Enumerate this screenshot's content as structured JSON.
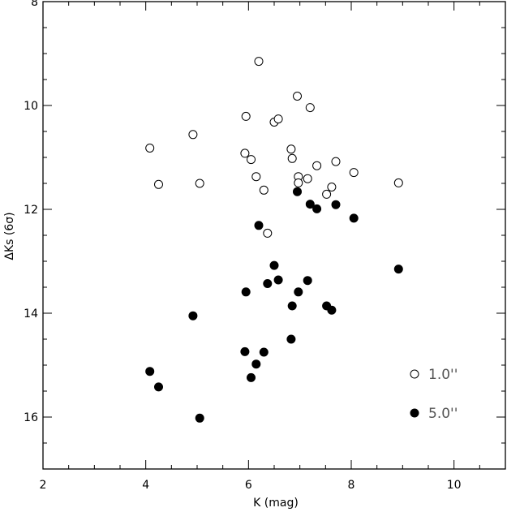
{
  "chart_data": {
    "type": "scatter",
    "title": "",
    "xlabel": "K (mag)",
    "ylabel": "ΔKs (6σ)",
    "xlim": [
      2,
      11
    ],
    "ylim": [
      17,
      8
    ],
    "y_inverted": true,
    "x_ticks": [
      "2",
      "4",
      "6",
      "8",
      "10"
    ],
    "y_ticks": [
      "8",
      "10",
      "12",
      "14",
      "16"
    ],
    "legend_position": "bottom-right",
    "series": [
      {
        "name": "1.0''",
        "marker": "open-circle",
        "points": [
          [
            4.08,
            10.82
          ],
          [
            4.25,
            11.52
          ],
          [
            4.92,
            10.56
          ],
          [
            5.05,
            11.5
          ],
          [
            5.93,
            10.92
          ],
          [
            5.95,
            10.21
          ],
          [
            6.05,
            11.04
          ],
          [
            6.15,
            11.37
          ],
          [
            6.2,
            9.15
          ],
          [
            6.3,
            11.63
          ],
          [
            6.37,
            12.46
          ],
          [
            6.5,
            10.32
          ],
          [
            6.58,
            10.26
          ],
          [
            6.83,
            10.84
          ],
          [
            6.85,
            11.02
          ],
          [
            6.95,
            9.82
          ],
          [
            6.97,
            11.37
          ],
          [
            6.97,
            11.49
          ],
          [
            7.15,
            11.41
          ],
          [
            7.2,
            10.04
          ],
          [
            7.33,
            11.16
          ],
          [
            7.52,
            11.71
          ],
          [
            7.62,
            11.57
          ],
          [
            7.7,
            11.08
          ],
          [
            8.05,
            11.29
          ],
          [
            8.92,
            11.49
          ]
        ]
      },
      {
        "name": "5.0''",
        "marker": "filled-circle",
        "points": [
          [
            4.08,
            15.12
          ],
          [
            4.25,
            15.42
          ],
          [
            4.92,
            14.05
          ],
          [
            5.05,
            16.02
          ],
          [
            5.93,
            14.74
          ],
          [
            5.95,
            13.59
          ],
          [
            6.05,
            15.24
          ],
          [
            6.15,
            14.98
          ],
          [
            6.2,
            12.31
          ],
          [
            6.3,
            14.75
          ],
          [
            6.37,
            13.43
          ],
          [
            6.5,
            13.08
          ],
          [
            6.58,
            13.36
          ],
          [
            6.83,
            14.5
          ],
          [
            6.85,
            13.86
          ],
          [
            6.95,
            11.66
          ],
          [
            6.97,
            13.59
          ],
          [
            7.15,
            13.37
          ],
          [
            7.2,
            11.9
          ],
          [
            7.33,
            11.99
          ],
          [
            7.52,
            13.86
          ],
          [
            7.62,
            13.94
          ],
          [
            7.7,
            11.91
          ],
          [
            8.05,
            12.17
          ],
          [
            8.92,
            13.15
          ]
        ]
      }
    ]
  }
}
